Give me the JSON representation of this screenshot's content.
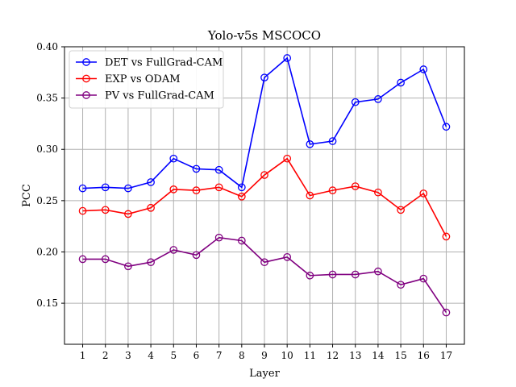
{
  "chart_data": {
    "type": "line",
    "title": "Yolo-v5s MSCOCO",
    "xlabel": "Layer",
    "ylabel": "PCC",
    "x": [
      1,
      2,
      3,
      4,
      5,
      6,
      7,
      8,
      9,
      10,
      11,
      12,
      13,
      14,
      15,
      16,
      17
    ],
    "xlim": [
      0.2,
      17.8
    ],
    "ylim": [
      0.11,
      0.4
    ],
    "yticks": [
      0.15,
      0.2,
      0.25,
      0.3,
      0.35,
      0.4
    ],
    "ytick_labels": [
      "0.15",
      "0.20",
      "0.25",
      "0.30",
      "0.35",
      "0.40"
    ],
    "grid": true,
    "legend_position": "top-left",
    "series": [
      {
        "name": "DET vs FullGrad-CAM",
        "color": "#0000ff",
        "values": [
          0.262,
          0.263,
          0.262,
          0.268,
          0.291,
          0.281,
          0.28,
          0.263,
          0.37,
          0.389,
          0.305,
          0.308,
          0.346,
          0.349,
          0.365,
          0.378,
          0.322
        ]
      },
      {
        "name": "EXP vs ODAM",
        "color": "#ff0000",
        "values": [
          0.24,
          0.241,
          0.237,
          0.243,
          0.261,
          0.26,
          0.263,
          0.254,
          0.275,
          0.291,
          0.255,
          0.26,
          0.264,
          0.258,
          0.241,
          0.257,
          0.215
        ]
      },
      {
        "name": "PV vs FullGrad-CAM",
        "color": "#800080",
        "values": [
          0.193,
          0.193,
          0.186,
          0.19,
          0.202,
          0.197,
          0.214,
          0.211,
          0.19,
          0.195,
          0.177,
          0.178,
          0.178,
          0.181,
          0.168,
          0.174,
          0.141
        ]
      }
    ]
  }
}
